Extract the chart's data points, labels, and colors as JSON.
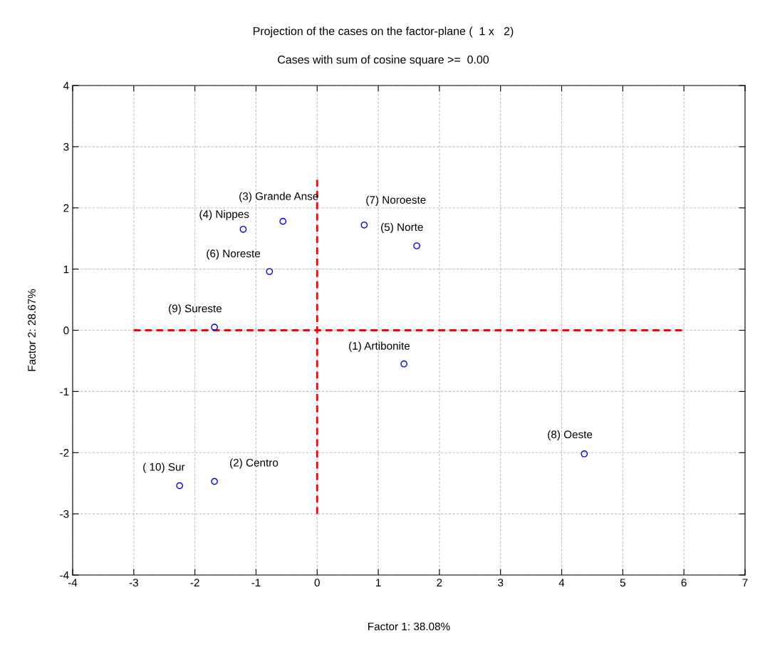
{
  "chart_data": {
    "type": "scatter",
    "title": "Projection of the cases on the factor-plane (  1 x   2)",
    "subtitle": "Cases with sum of cosine square >=  0.00",
    "xlabel": "Factor 1: 38.08%",
    "ylabel": "Factor 2: 28.67%",
    "series": [
      {
        "color": "#0000ff",
        "marker": "circle",
        "x": [
          1.42,
          -1.68,
          -0.56,
          -1.21,
          1.63,
          -0.78,
          0.77,
          4.37,
          -1.68,
          -2.25
        ],
        "values": [
          -0.55,
          -2.47,
          1.78,
          1.65,
          1.38,
          0.96,
          1.72,
          -2.02,
          0.05,
          -2.54
        ]
      },
      {
        "type": "line",
        "color": "#ff0000",
        "line_style": "dashed",
        "marker": "none",
        "x": [
          -3,
          6
        ],
        "values": [
          0,
          0
        ]
      },
      {
        "type": "line",
        "color": "#ff0000",
        "line_style": "dashed",
        "marker": "none",
        "x": [
          0,
          0
        ],
        "values": [
          -3,
          2.5
        ]
      }
    ],
    "annotations": [
      {
        "text": "(1) Artibonite",
        "x": 1.42,
        "y": -0.55
      },
      {
        "text": "(2) Centro",
        "x": -1.68,
        "y": -2.47
      },
      {
        "text": "(3) Grande Anse",
        "x": -0.56,
        "y": 1.78
      },
      {
        "text": "(4) Nippes",
        "x": -1.21,
        "y": 1.65
      },
      {
        "text": "(5) Norte",
        "x": 1.63,
        "y": 1.38
      },
      {
        "text": "(6) Noreste",
        "x": -0.78,
        "y": 0.96
      },
      {
        "text": "(7) Noroeste",
        "x": 0.77,
        "y": 1.72
      },
      {
        "text": "(8) Oeste",
        "x": 4.37,
        "y": -2.02
      },
      {
        "text": "(9) Sureste",
        "x": -1.68,
        "y": 0.05
      },
      {
        "text": "( 10) Sur",
        "x": -2.25,
        "y": -2.54
      }
    ],
    "xlim": [
      -4,
      7
    ],
    "xticks": [
      -4,
      -3,
      -2,
      -1,
      0,
      1,
      2,
      3,
      4,
      5,
      6,
      7
    ],
    "ylim": [
      -4,
      4
    ],
    "yticks": [
      -4,
      -3,
      -2,
      -1,
      0,
      1,
      2,
      3,
      4
    ],
    "grid": true
  }
}
